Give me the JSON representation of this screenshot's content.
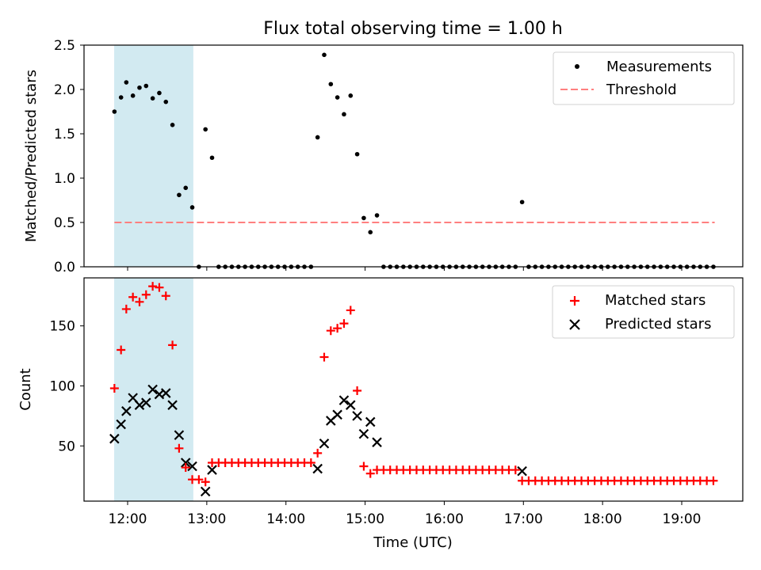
{
  "figure": {
    "title": "Flux total observing time = 1.00 h",
    "xlabel": "Time (UTC)",
    "x_ticks": [
      "12:00",
      "13:00",
      "14:00",
      "15:00",
      "16:00",
      "17:00",
      "18:00",
      "19:00"
    ],
    "shaded_span_hours": [
      11.83,
      12.83
    ],
    "shade_color": "#add8e6"
  },
  "chart_data": [
    {
      "type": "scatter",
      "panel": "top",
      "ylabel": "Matched/Predicted stars",
      "ylim": [
        0,
        2.5
      ],
      "y_ticks": [
        "0.0",
        "0.5",
        "1.0",
        "1.5",
        "2.0",
        "2.5"
      ],
      "legend_position": "top-right",
      "series": [
        {
          "name": "Measurements",
          "marker": "dot",
          "color": "#000000",
          "points": [
            [
              "11:50",
              1.75
            ],
            [
              "11:55",
              1.91
            ],
            [
              "11:59",
              2.08
            ],
            [
              "12:04",
              1.93
            ],
            [
              "12:09",
              2.02
            ],
            [
              "12:14",
              2.04
            ],
            [
              "12:19",
              1.9
            ],
            [
              "12:24",
              1.96
            ],
            [
              "12:29",
              1.86
            ],
            [
              "12:34",
              1.6
            ],
            [
              "12:39",
              0.81
            ],
            [
              "12:44",
              0.89
            ],
            [
              "12:49",
              0.67
            ],
            [
              "12:54",
              0.0
            ],
            [
              "12:59",
              1.55
            ],
            [
              "13:04",
              1.23
            ],
            [
              "13:09",
              0.0
            ],
            [
              "13:14",
              0.0
            ],
            [
              "13:19",
              0.0
            ],
            [
              "13:24",
              0.0
            ],
            [
              "13:29",
              0.0
            ],
            [
              "13:34",
              0.0
            ],
            [
              "13:39",
              0.0
            ],
            [
              "13:44",
              0.0
            ],
            [
              "13:49",
              0.0
            ],
            [
              "13:54",
              0.0
            ],
            [
              "13:59",
              0.0
            ],
            [
              "14:04",
              0.0
            ],
            [
              "14:09",
              0.0
            ],
            [
              "14:14",
              0.0
            ],
            [
              "14:19",
              0.0
            ],
            [
              "14:24",
              1.46
            ],
            [
              "14:29",
              2.39
            ],
            [
              "14:34",
              2.06
            ],
            [
              "14:39",
              1.91
            ],
            [
              "14:44",
              1.72
            ],
            [
              "14:49",
              1.93
            ],
            [
              "14:54",
              1.27
            ],
            [
              "14:59",
              0.55
            ],
            [
              "15:04",
              0.39
            ],
            [
              "15:09",
              0.58
            ],
            [
              "15:14",
              0.0
            ],
            [
              "15:19",
              0.0
            ],
            [
              "15:24",
              0.0
            ],
            [
              "15:29",
              0.0
            ],
            [
              "15:34",
              0.0
            ],
            [
              "15:39",
              0.0
            ],
            [
              "15:44",
              0.0
            ],
            [
              "15:49",
              0.0
            ],
            [
              "15:54",
              0.0
            ],
            [
              "15:59",
              0.0
            ],
            [
              "16:04",
              0.0
            ],
            [
              "16:09",
              0.0
            ],
            [
              "16:14",
              0.0
            ],
            [
              "16:19",
              0.0
            ],
            [
              "16:24",
              0.0
            ],
            [
              "16:29",
              0.0
            ],
            [
              "16:34",
              0.0
            ],
            [
              "16:39",
              0.0
            ],
            [
              "16:44",
              0.0
            ],
            [
              "16:49",
              0.0
            ],
            [
              "16:54",
              0.0
            ],
            [
              "16:59",
              0.73
            ],
            [
              "17:04",
              0.0
            ],
            [
              "17:09",
              0.0
            ],
            [
              "17:14",
              0.0
            ],
            [
              "17:19",
              0.0
            ],
            [
              "17:24",
              0.0
            ],
            [
              "17:29",
              0.0
            ],
            [
              "17:34",
              0.0
            ],
            [
              "17:39",
              0.0
            ],
            [
              "17:44",
              0.0
            ],
            [
              "17:49",
              0.0
            ],
            [
              "17:54",
              0.0
            ],
            [
              "17:59",
              0.0
            ],
            [
              "18:04",
              0.0
            ],
            [
              "18:09",
              0.0
            ],
            [
              "18:14",
              0.0
            ],
            [
              "18:19",
              0.0
            ],
            [
              "18:24",
              0.0
            ],
            [
              "18:29",
              0.0
            ],
            [
              "18:34",
              0.0
            ],
            [
              "18:39",
              0.0
            ],
            [
              "18:44",
              0.0
            ],
            [
              "18:49",
              0.0
            ],
            [
              "18:54",
              0.0
            ],
            [
              "18:59",
              0.0
            ],
            [
              "19:04",
              0.0
            ],
            [
              "19:09",
              0.0
            ],
            [
              "19:14",
              0.0
            ],
            [
              "19:19",
              0.0
            ],
            [
              "19:24",
              0.0
            ]
          ]
        },
        {
          "name": "Threshold",
          "marker": "dashed-line",
          "color": "#ff7f7f",
          "points": [
            [
              "11:50",
              0.5
            ],
            [
              "19:25",
              0.5
            ]
          ]
        }
      ]
    },
    {
      "type": "scatter",
      "panel": "bottom",
      "ylabel": "Count",
      "ylim": [
        4,
        190
      ],
      "y_ticks": [
        "50",
        "100",
        "150"
      ],
      "y_tick_values": [
        50,
        100,
        150
      ],
      "legend_position": "top-right",
      "series": [
        {
          "name": "Matched stars",
          "marker": "plus",
          "color": "#ff0000",
          "points": [
            [
              "11:50",
              98
            ],
            [
              "11:55",
              130
            ],
            [
              "11:59",
              164
            ],
            [
              "12:04",
              174
            ],
            [
              "12:09",
              170
            ],
            [
              "12:14",
              176
            ],
            [
              "12:19",
              183
            ],
            [
              "12:24",
              182
            ],
            [
              "12:29",
              175
            ],
            [
              "12:34",
              134
            ],
            [
              "12:39",
              48
            ],
            [
              "12:44",
              32
            ],
            [
              "12:49",
              22
            ],
            [
              "12:54",
              22
            ],
            [
              "12:59",
              20
            ],
            [
              "13:04",
              36
            ],
            [
              "13:09",
              36
            ],
            [
              "13:14",
              36
            ],
            [
              "13:19",
              36
            ],
            [
              "13:24",
              36
            ],
            [
              "13:29",
              36
            ],
            [
              "13:34",
              36
            ],
            [
              "13:39",
              36
            ],
            [
              "13:44",
              36
            ],
            [
              "13:49",
              36
            ],
            [
              "13:54",
              36
            ],
            [
              "13:59",
              36
            ],
            [
              "14:04",
              36
            ],
            [
              "14:09",
              36
            ],
            [
              "14:14",
              36
            ],
            [
              "14:19",
              36
            ],
            [
              "14:24",
              44
            ],
            [
              "14:29",
              124
            ],
            [
              "14:34",
              146
            ],
            [
              "14:39",
              148
            ],
            [
              "14:44",
              152
            ],
            [
              "14:49",
              163
            ],
            [
              "14:54",
              96
            ],
            [
              "14:59",
              33
            ],
            [
              "15:04",
              27
            ],
            [
              "15:09",
              30
            ],
            [
              "15:14",
              30
            ],
            [
              "15:19",
              30
            ],
            [
              "15:24",
              30
            ],
            [
              "15:29",
              30
            ],
            [
              "15:34",
              30
            ],
            [
              "15:39",
              30
            ],
            [
              "15:44",
              30
            ],
            [
              "15:49",
              30
            ],
            [
              "15:54",
              30
            ],
            [
              "15:59",
              30
            ],
            [
              "16:04",
              30
            ],
            [
              "16:09",
              30
            ],
            [
              "16:14",
              30
            ],
            [
              "16:19",
              30
            ],
            [
              "16:24",
              30
            ],
            [
              "16:29",
              30
            ],
            [
              "16:34",
              30
            ],
            [
              "16:39",
              30
            ],
            [
              "16:44",
              30
            ],
            [
              "16:49",
              30
            ],
            [
              "16:54",
              30
            ],
            [
              "16:59",
              21
            ],
            [
              "17:04",
              21
            ],
            [
              "17:09",
              21
            ],
            [
              "17:14",
              21
            ],
            [
              "17:19",
              21
            ],
            [
              "17:24",
              21
            ],
            [
              "17:29",
              21
            ],
            [
              "17:34",
              21
            ],
            [
              "17:39",
              21
            ],
            [
              "17:44",
              21
            ],
            [
              "17:49",
              21
            ],
            [
              "17:54",
              21
            ],
            [
              "17:59",
              21
            ],
            [
              "18:04",
              21
            ],
            [
              "18:09",
              21
            ],
            [
              "18:14",
              21
            ],
            [
              "18:19",
              21
            ],
            [
              "18:24",
              21
            ],
            [
              "18:29",
              21
            ],
            [
              "18:34",
              21
            ],
            [
              "18:39",
              21
            ],
            [
              "18:44",
              21
            ],
            [
              "18:49",
              21
            ],
            [
              "18:54",
              21
            ],
            [
              "18:59",
              21
            ],
            [
              "19:04",
              21
            ],
            [
              "19:09",
              21
            ],
            [
              "19:14",
              21
            ],
            [
              "19:19",
              21
            ],
            [
              "19:24",
              21
            ]
          ]
        },
        {
          "name": "Predicted stars",
          "marker": "x",
          "color": "#000000",
          "points": [
            [
              "11:50",
              56
            ],
            [
              "11:55",
              68
            ],
            [
              "11:59",
              79
            ],
            [
              "12:04",
              90
            ],
            [
              "12:09",
              84
            ],
            [
              "12:14",
              86
            ],
            [
              "12:19",
              97
            ],
            [
              "12:24",
              93
            ],
            [
              "12:29",
              94
            ],
            [
              "12:34",
              84
            ],
            [
              "12:39",
              59
            ],
            [
              "12:44",
              36
            ],
            [
              "12:49",
              33
            ],
            [
              "12:59",
              12
            ],
            [
              "13:04",
              30
            ],
            [
              "14:24",
              31
            ],
            [
              "14:29",
              52
            ],
            [
              "14:34",
              71
            ],
            [
              "14:39",
              76
            ],
            [
              "14:44",
              88
            ],
            [
              "14:49",
              84
            ],
            [
              "14:54",
              75
            ],
            [
              "14:59",
              60
            ],
            [
              "15:04",
              70
            ],
            [
              "15:09",
              53
            ],
            [
              "16:59",
              29
            ]
          ]
        }
      ]
    }
  ]
}
